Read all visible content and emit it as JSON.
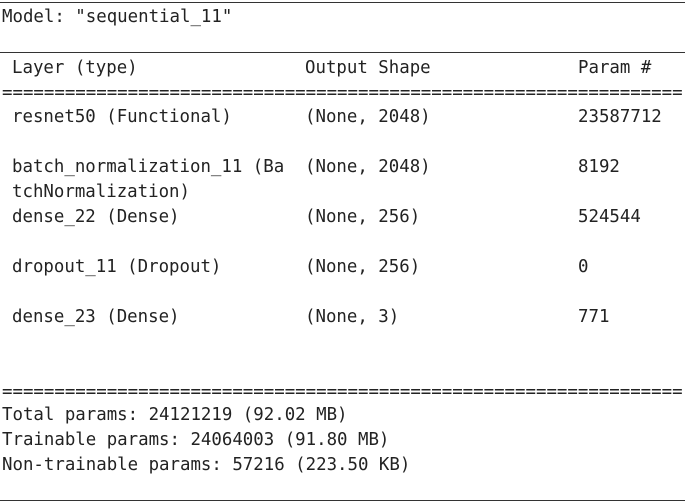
{
  "model_line": "Model: \"sequential_11\"",
  "table": {
    "header": [
      "Layer (type)",
      "Output Shape",
      "Param #"
    ],
    "separator": "=================================================================",
    "rows": [
      [
        [
          "resnet50 (Functional)"
        ],
        "(None, 2048)",
        "23587712"
      ],
      [
        [
          "batch_normalization_11 (Ba",
          "tchNormalization)"
        ],
        "(None, 2048)",
        "8192"
      ],
      [
        [
          "dense_22 (Dense)"
        ],
        "(None, 256)",
        "524544"
      ],
      [
        [
          "dropout_11 (Dropout)"
        ],
        "(None, 256)",
        "0"
      ],
      [
        [
          "dense_23 (Dense)"
        ],
        "(None, 3)",
        "771"
      ]
    ]
  },
  "totals": [
    "Total params: 24121219 (92.02 MB)",
    "Trainable params: 24064003 (91.80 MB)",
    "Non-trainable params: 57216 (223.50 KB)"
  ]
}
